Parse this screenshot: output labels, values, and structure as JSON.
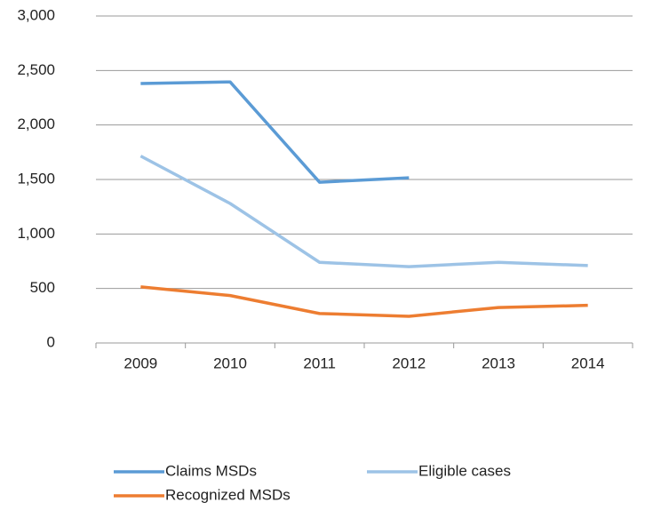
{
  "chart_data": {
    "type": "line",
    "categories": [
      "2009",
      "2010",
      "2011",
      "2012",
      "2013",
      "2014"
    ],
    "series": [
      {
        "name": "Claims MSDs",
        "color": "#5b9bd5",
        "values": [
          2380,
          2395,
          1475,
          1515,
          null,
          null
        ]
      },
      {
        "name": "Eligible cases",
        "color": "#9dc3e6",
        "values": [
          1715,
          1280,
          740,
          700,
          740,
          710
        ]
      },
      {
        "name": "Recognized MSDs",
        "color": "#ed7d31",
        "values": [
          515,
          435,
          270,
          245,
          325,
          345
        ]
      }
    ],
    "ylim": [
      0,
      3000
    ],
    "yticks": [
      0,
      500,
      {
        "value": 1000,
        "label": "1,000"
      },
      {
        "value": 1500,
        "label": "1,500"
      },
      {
        "value": 2000,
        "label": "2,000"
      },
      {
        "value": 2500,
        "label": "2,500"
      },
      {
        "value": 3000,
        "label": "3,000"
      }
    ],
    "grid": true
  }
}
